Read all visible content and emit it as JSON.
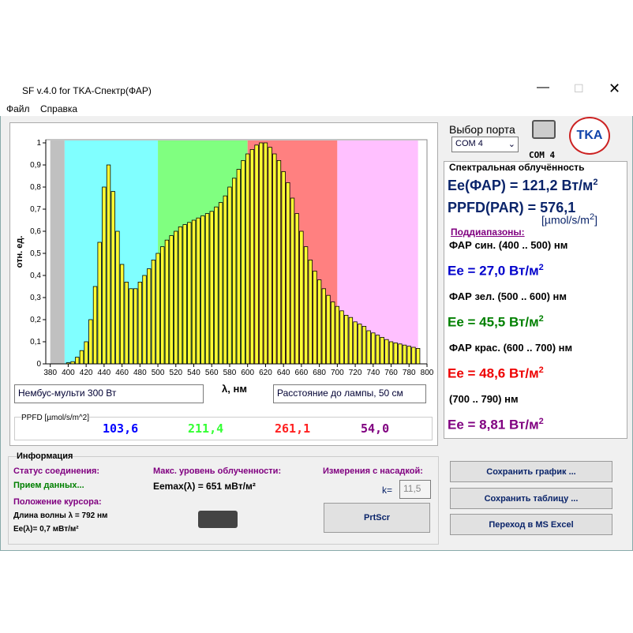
{
  "window": {
    "title": "SF v.4.0 for TKA-Спектр(ФАР)",
    "menu": [
      "Файл",
      "Справка"
    ]
  },
  "chart_data": {
    "type": "bar",
    "xlabel": "λ, нм",
    "ylabel": "отн. ед.",
    "x": [
      400,
      405,
      410,
      415,
      420,
      425,
      430,
      435,
      440,
      445,
      450,
      455,
      460,
      465,
      470,
      475,
      480,
      485,
      490,
      495,
      500,
      505,
      510,
      515,
      520,
      525,
      530,
      535,
      540,
      545,
      550,
      555,
      560,
      565,
      570,
      575,
      580,
      585,
      590,
      595,
      600,
      605,
      610,
      615,
      620,
      625,
      630,
      635,
      640,
      645,
      650,
      655,
      660,
      665,
      670,
      675,
      680,
      685,
      690,
      695,
      700,
      705,
      710,
      715,
      720,
      725,
      730,
      735,
      740,
      745,
      750,
      755,
      760,
      765,
      770,
      775,
      780,
      785,
      790
    ],
    "values": [
      0.005,
      0.01,
      0.03,
      0.06,
      0.1,
      0.2,
      0.35,
      0.55,
      0.8,
      0.9,
      0.78,
      0.6,
      0.45,
      0.37,
      0.34,
      0.34,
      0.37,
      0.4,
      0.43,
      0.47,
      0.5,
      0.53,
      0.56,
      0.58,
      0.6,
      0.62,
      0.63,
      0.64,
      0.65,
      0.66,
      0.67,
      0.68,
      0.69,
      0.71,
      0.73,
      0.76,
      0.8,
      0.84,
      0.88,
      0.92,
      0.95,
      0.97,
      0.99,
      1.0,
      1.0,
      0.98,
      0.95,
      0.92,
      0.87,
      0.82,
      0.75,
      0.68,
      0.6,
      0.53,
      0.47,
      0.42,
      0.38,
      0.34,
      0.31,
      0.28,
      0.26,
      0.24,
      0.22,
      0.21,
      0.19,
      0.18,
      0.17,
      0.15,
      0.14,
      0.13,
      0.12,
      0.11,
      0.1,
      0.095,
      0.09,
      0.085,
      0.08,
      0.075,
      0.07
    ],
    "color": "#ffff33",
    "bands": [
      {
        "from": 380,
        "to": 396,
        "color": "#c0c0c0"
      },
      {
        "from": 396,
        "to": 500,
        "color": "#80ffff"
      },
      {
        "from": 500,
        "to": 600,
        "color": "#80ff80"
      },
      {
        "from": 600,
        "to": 700,
        "color": "#ff8080"
      },
      {
        "from": 700,
        "to": 790,
        "color": "#ffc0ff"
      }
    ],
    "xlim": [
      375,
      800
    ],
    "ylim": [
      0,
      1
    ],
    "xticks": [
      380,
      400,
      420,
      440,
      460,
      480,
      500,
      520,
      540,
      560,
      580,
      600,
      620,
      640,
      660,
      680,
      700,
      720,
      740,
      760,
      780,
      800
    ],
    "yticks": [
      0,
      {
        "value": 0.1,
        "label": "0,1"
      },
      {
        "value": 0.2,
        "label": "0,2"
      },
      {
        "value": 0.3,
        "label": "0,3"
      },
      {
        "value": 0.4,
        "label": "0,4"
      },
      {
        "value": 0.5,
        "label": "0,5"
      },
      {
        "value": 0.6,
        "label": "0,6"
      },
      {
        "value": 0.7,
        "label": "0,7"
      },
      {
        "value": 0.8,
        "label": "0,8"
      },
      {
        "value": 0.9,
        "label": "0,9"
      },
      1
    ]
  },
  "inputs": {
    "lamp": "Нембус-мульти 300 Вт",
    "distance": "Расстояние до лампы, 50 см"
  },
  "ppfd": {
    "label": "PPFD [µmol/s/m^2]",
    "values": [
      {
        "text": "103,6",
        "color": "#0000ff"
      },
      {
        "text": "211,4",
        "color": "#33ff33"
      },
      {
        "text": "261,1",
        "color": "#ff2020"
      },
      {
        "text": "54,0",
        "color": "#800080"
      }
    ]
  },
  "port": {
    "label": "Выбор порта",
    "select": "COM 4",
    "icon_label": "COM 4"
  },
  "panel": {
    "heading": "Спектральная облучённость",
    "ee_par": {
      "text": "Ee(ФАР) = 121,2 Вт/м",
      "sup": "2"
    },
    "ppfd": "PPFD(PAR) = 576,1",
    "ppfd_unit": {
      "text": "[µmol/s/m",
      "sup": "2",
      "close": "]"
    },
    "subranges": "Поддиапазоны:",
    "rows": [
      {
        "label": "ФАР син. (400 .. 500) нм",
        "value": "Ee = 27,0 Вт/м",
        "sup": "2",
        "color": "#0000cc"
      },
      {
        "label": "ФАР зел. (500 .. 600) нм",
        "value": "Ee = 45,5 Вт/м",
        "sup": "2",
        "color": "#008000"
      },
      {
        "label": "ФАР крас. (600 .. 700) нм",
        "value": "Ee = 48,6 Вт/м",
        "sup": "2",
        "color": "#ee0000"
      },
      {
        "label": "(700 .. 790) нм",
        "value": "Ee = 8,81 Вт/м",
        "sup": "2",
        "color": "#800080"
      }
    ]
  },
  "info": {
    "heading": "Информация",
    "status_label": "Статус соединения:",
    "status": "Прием данных...",
    "cursor_label": "Положение курсора:",
    "wavelength": "Длина волны λ = 792 нм",
    "ee_cursor": "Ee(λ)= 0,7 мВт/м²",
    "max_label": "Макс. уровень облученности:",
    "max_value": "Eemax(λ) = 651 мВт/м²",
    "measure_label": "Измерения с насадкой:",
    "k": "k=",
    "k_value": "11,5"
  },
  "buttons": [
    "PrtScr",
    "Сохранить график ...",
    "Сохранить таблицу ...",
    "Переход в MS Excel"
  ]
}
